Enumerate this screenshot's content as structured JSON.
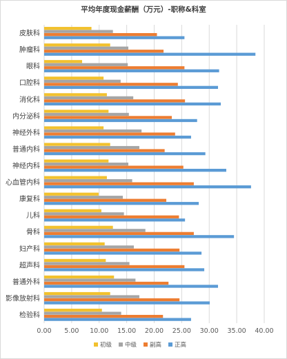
{
  "chart_data": {
    "type": "bar",
    "orientation": "horizontal",
    "title": "平均年度现金薪酬（万元）-职称&科室",
    "categories": [
      "皮肤科",
      "肿瘤科",
      "眼科",
      "口腔科",
      "消化科",
      "内分泌科",
      "神经外科",
      "普通内科",
      "神经内科",
      "心血管内科",
      "康复科",
      "儿科",
      "骨科",
      "妇产科",
      "超声科",
      "普通外科",
      "影像放射科",
      "检验科"
    ],
    "series": [
      {
        "name": "初级",
        "color": "#F2C12E",
        "values": [
          8.6,
          12.0,
          6.9,
          10.8,
          11.4,
          11.7,
          10.8,
          12.0,
          11.7,
          11.4,
          9.9,
          10.4,
          12.5,
          11.0,
          11.2,
          12.7,
          12.0,
          10.5
        ]
      },
      {
        "name": "中级",
        "color": "#A5A5A5",
        "values": [
          12.5,
          15.3,
          15.2,
          13.9,
          16.2,
          15.4,
          17.7,
          17.3,
          15.3,
          16.0,
          14.3,
          14.5,
          18.4,
          16.3,
          15.5,
          16.6,
          17.3,
          14.0
        ]
      },
      {
        "name": "副高",
        "color": "#ED7D31",
        "values": [
          20.5,
          21.7,
          25.5,
          24.3,
          25.6,
          23.2,
          23.8,
          21.9,
          25.3,
          27.2,
          22.2,
          24.5,
          27.2,
          24.6,
          25.5,
          22.6,
          24.6,
          21.6
        ]
      },
      {
        "name": "正高",
        "color": "#5B9BD5",
        "values": [
          25.5,
          38.4,
          31.8,
          31.6,
          32.1,
          27.8,
          26.7,
          29.3,
          33.1,
          37.6,
          28.1,
          25.6,
          34.5,
          28.6,
          29.1,
          31.6,
          30.1,
          26.7
        ]
      }
    ],
    "xlim": [
      0,
      40
    ],
    "xticks": [
      "0.00",
      "5.00",
      "10.00",
      "15.00",
      "20.00",
      "25.00",
      "30.00",
      "35.00",
      "40.00"
    ],
    "grid": true,
    "legend": "bottom"
  }
}
